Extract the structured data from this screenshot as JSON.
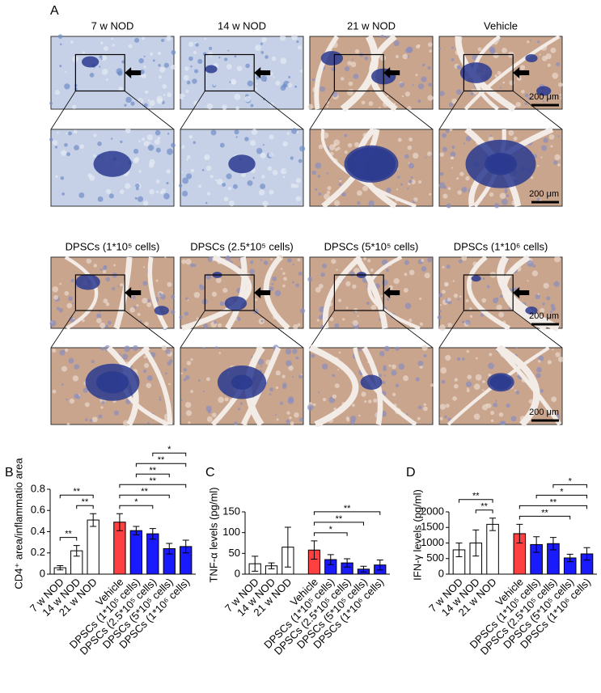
{
  "panel_a": {
    "label": "A",
    "rows": [
      {
        "titles": [
          "7 w NOD",
          "14 w NOD",
          "21 w NOD",
          "Vehicle"
        ],
        "scale_bars": [
          "200 μm",
          "200 μm"
        ]
      },
      {
        "titles": [
          "DPSCs (1*10⁵ cells)",
          "DPSCs (2.5*10⁵ cells)",
          "DPSCs (5*10⁵ cells)",
          "DPSCs (1*10⁶ cells)"
        ],
        "scale_bars": [
          "200 μm",
          "200 μm"
        ]
      }
    ]
  },
  "chart_data": [
    {
      "type": "bar",
      "panel": "B",
      "ylabel": "CD4⁺ area/inflammatio area",
      "categories": [
        "7 w NOD",
        "14 w NOD",
        "21 w NOD",
        "Vehicle",
        "DPSCs (1*10⁵ cells)",
        "DPSCs (2.5*10⁵ cells)",
        "DPSCs (5*10⁵ cells)",
        "DPSCs (1*10⁶ cells)"
      ],
      "values": [
        0.06,
        0.22,
        0.51,
        0.49,
        0.41,
        0.38,
        0.24,
        0.26
      ],
      "errors": [
        0.02,
        0.05,
        0.06,
        0.08,
        0.04,
        0.05,
        0.05,
        0.06
      ],
      "colors": [
        "#ffffff",
        "#ffffff",
        "#ffffff",
        "#ff4040",
        "#1a1aff",
        "#1a1aff",
        "#1a1aff",
        "#1a1aff"
      ],
      "ylim": [
        0,
        0.8
      ],
      "yticks": [
        0,
        0.2,
        0.4,
        0.6,
        0.8
      ],
      "significance": [
        {
          "label": "**",
          "pair": [
            0,
            1
          ]
        },
        {
          "label": "**",
          "pair": [
            1,
            2
          ]
        },
        {
          "label": "**",
          "pair": [
            0,
            2
          ]
        },
        {
          "label": "*",
          "pair": [
            3,
            5
          ]
        },
        {
          "label": "**",
          "pair": [
            3,
            6
          ]
        },
        {
          "label": "**",
          "pair": [
            3,
            7
          ]
        },
        {
          "label": "**",
          "pair": [
            4,
            6
          ]
        },
        {
          "label": "**",
          "pair": [
            4,
            7
          ]
        },
        {
          "label": "*",
          "pair": [
            5,
            7
          ]
        }
      ]
    },
    {
      "type": "bar",
      "panel": "C",
      "ylabel": "TNF-α levels (pg/ml)",
      "categories": [
        "7 w NOD",
        "14 w NOD",
        "21 w NOD",
        "Vehicle",
        "DPSCs (1*10⁵ cells)",
        "DPSCs (2.5*10⁵ cells)",
        "DPSCs (5*10⁵ cells)",
        "DPSCs (1*10⁶ cells)"
      ],
      "values": [
        25,
        20,
        65,
        58,
        35,
        27,
        12,
        22
      ],
      "errors": [
        18,
        7,
        48,
        22,
        12,
        10,
        7,
        12
      ],
      "colors": [
        "#ffffff",
        "#ffffff",
        "#ffffff",
        "#ff4040",
        "#1a1aff",
        "#1a1aff",
        "#1a1aff",
        "#1a1aff"
      ],
      "ylim": [
        0,
        150
      ],
      "yticks": [
        0,
        50,
        100,
        150
      ],
      "significance": [
        {
          "label": "*",
          "pair": [
            3,
            5
          ]
        },
        {
          "label": "**",
          "pair": [
            3,
            6
          ]
        },
        {
          "label": "**",
          "pair": [
            3,
            7
          ]
        }
      ]
    },
    {
      "type": "bar",
      "panel": "D",
      "ylabel": "IFN-γ levels (pg/ml)",
      "categories": [
        "7 w NOD",
        "14 w NOD",
        "21 w NOD",
        "Vehicle",
        "DPSCs (1*10⁵ cells)",
        "DPSCs (2.5*10⁵ cells)",
        "DPSCs (5*10⁵ cells)",
        "DPSCs (1*10⁶ cells)"
      ],
      "values": [
        780,
        1000,
        1600,
        1300,
        950,
        980,
        520,
        650
      ],
      "errors": [
        220,
        420,
        200,
        300,
        250,
        200,
        120,
        200
      ],
      "colors": [
        "#ffffff",
        "#ffffff",
        "#ffffff",
        "#ff4040",
        "#1a1aff",
        "#1a1aff",
        "#1a1aff",
        "#1a1aff"
      ],
      "ylim": [
        0,
        2000
      ],
      "yticks": [
        0,
        500,
        1000,
        1500,
        2000
      ],
      "significance": [
        {
          "label": "**",
          "pair": [
            1,
            2
          ]
        },
        {
          "label": "**",
          "pair": [
            0,
            2
          ]
        },
        {
          "label": "**",
          "pair": [
            3,
            6
          ]
        },
        {
          "label": "**",
          "pair": [
            3,
            7
          ]
        },
        {
          "label": "*",
          "pair": [
            4,
            7
          ]
        },
        {
          "label": "*",
          "pair": [
            5,
            7
          ]
        }
      ]
    }
  ]
}
